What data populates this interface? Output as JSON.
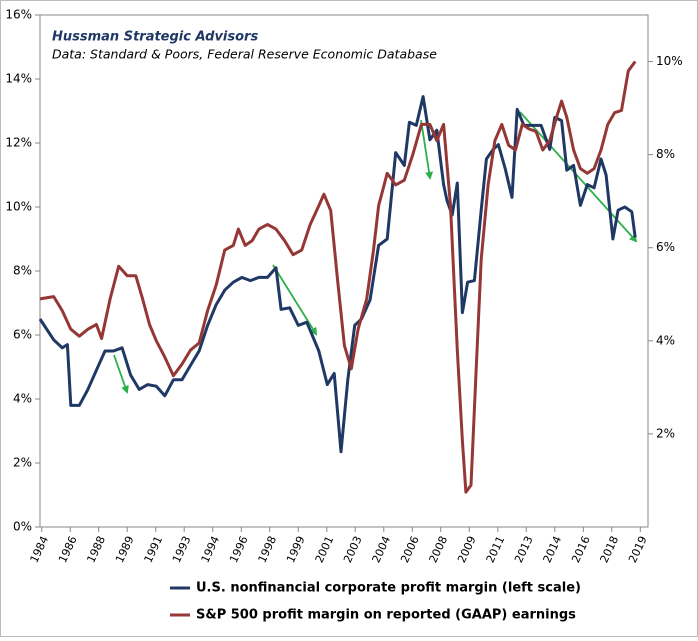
{
  "chart_data": {
    "type": "line",
    "title": "Hussman Strategic Advisors",
    "subtitle": "Data: Standard & Poors, Federal Reserve Economic Database",
    "xlim": [
      1984.2,
      2019.75
    ],
    "xticks": [
      {
        "value": 1984.3,
        "label": "1984"
      },
      {
        "value": 1985.97,
        "label": "1986"
      },
      {
        "value": 1987.63,
        "label": "1988"
      },
      {
        "value": 1989.3,
        "label": "1989"
      },
      {
        "value": 1990.97,
        "label": "1991"
      },
      {
        "value": 1992.63,
        "label": "1993"
      },
      {
        "value": 1994.3,
        "label": "1994"
      },
      {
        "value": 1995.97,
        "label": "1996"
      },
      {
        "value": 1997.63,
        "label": "1998"
      },
      {
        "value": 1999.3,
        "label": "1999"
      },
      {
        "value": 2000.97,
        "label": "2001"
      },
      {
        "value": 2002.63,
        "label": "2003"
      },
      {
        "value": 2004.3,
        "label": "2004"
      },
      {
        "value": 2005.97,
        "label": "2006"
      },
      {
        "value": 2007.63,
        "label": "2008"
      },
      {
        "value": 2009.3,
        "label": "2009"
      },
      {
        "value": 2010.97,
        "label": "2011"
      },
      {
        "value": 2012.63,
        "label": "2013"
      },
      {
        "value": 2014.3,
        "label": "2014"
      },
      {
        "value": 2015.97,
        "label": "2016"
      },
      {
        "value": 2017.63,
        "label": "2018"
      },
      {
        "value": 2019.3,
        "label": "2019"
      }
    ],
    "ylim": [
      0,
      16
    ],
    "yticks": [
      {
        "value": 0,
        "label": "0%"
      },
      {
        "value": 2,
        "label": "2%"
      },
      {
        "value": 4,
        "label": "4%"
      },
      {
        "value": 6,
        "label": "6%"
      },
      {
        "value": 8,
        "label": "8%"
      },
      {
        "value": 10,
        "label": "10%"
      },
      {
        "value": 12,
        "label": "12%"
      },
      {
        "value": 14,
        "label": "14%"
      },
      {
        "value": 16,
        "label": "16%"
      }
    ],
    "y2lim": [
      0,
      11
    ],
    "y2ticks": [
      {
        "value": 2,
        "label": "2%"
      },
      {
        "value": 4,
        "label": "4%"
      },
      {
        "value": 6,
        "label": "6%"
      },
      {
        "value": 8,
        "label": "8%"
      },
      {
        "value": 10,
        "label": "10%"
      }
    ],
    "grid": false,
    "legend": "bottom",
    "series": [
      {
        "name": "U.S. nonfinancial corporate profit margin (left scale)",
        "color": "#1f3864",
        "x": [
          1984.2,
          1985.0,
          1985.5,
          1985.8,
          1986.0,
          1986.5,
          1987.0,
          1987.5,
          1988.0,
          1988.5,
          1989.0,
          1989.5,
          1990.0,
          1990.5,
          1991.0,
          1991.5,
          1992.0,
          1992.5,
          1993.0,
          1993.5,
          1994.0,
          1994.5,
          1995.0,
          1995.5,
          1996.0,
          1996.5,
          1997.0,
          1997.5,
          1998.0,
          1998.3,
          1998.8,
          1999.3,
          1999.8,
          2000.5,
          2001.0,
          2001.4,
          2001.8,
          2002.2,
          2002.6,
          2003.0,
          2003.5,
          2004.0,
          2004.5,
          2005.0,
          2005.5,
          2005.8,
          2006.2,
          2006.6,
          2007.0,
          2007.4,
          2007.8,
          2008.0,
          2008.3,
          2008.6,
          2008.9,
          2009.2,
          2009.6,
          2010.0,
          2010.3,
          2010.7,
          2011.0,
          2011.4,
          2011.8,
          2012.1,
          2012.5,
          2013.0,
          2013.5,
          2014.0,
          2014.3,
          2014.7,
          2015.0,
          2015.4,
          2015.8,
          2016.2,
          2016.6,
          2017.0,
          2017.3,
          2017.7,
          2018.0,
          2018.4,
          2018.8,
          2019.0
        ],
        "values": [
          6.5,
          5.85,
          5.6,
          5.7,
          3.8,
          3.8,
          4.3,
          4.9,
          5.5,
          5.5,
          5.6,
          4.75,
          4.3,
          4.45,
          4.4,
          4.1,
          4.6,
          4.6,
          5.05,
          5.5,
          6.3,
          6.95,
          7.4,
          7.65,
          7.8,
          7.7,
          7.8,
          7.8,
          8.1,
          6.8,
          6.85,
          6.3,
          6.4,
          5.5,
          4.45,
          4.8,
          2.35,
          4.6,
          6.3,
          6.5,
          7.1,
          8.8,
          9.0,
          11.7,
          11.3,
          12.65,
          12.55,
          13.45,
          12.1,
          12.4,
          10.7,
          10.2,
          9.75,
          10.75,
          6.7,
          7.65,
          7.7,
          9.9,
          11.5,
          11.8,
          11.95,
          11.2,
          10.3,
          13.05,
          12.55,
          12.55,
          12.55,
          11.8,
          12.8,
          12.7,
          11.15,
          11.3,
          10.05,
          10.7,
          10.6,
          11.5,
          11.0,
          9.0,
          9.9,
          10.0,
          9.85,
          9.05
        ]
      },
      {
        "name": "S&P 500 profit margin on reported (GAAP) earnings",
        "color": "#953735",
        "axis": "y2",
        "x": [
          1984.2,
          1985.0,
          1985.5,
          1986.0,
          1986.5,
          1987.0,
          1987.5,
          1987.8,
          1988.3,
          1988.8,
          1989.3,
          1989.8,
          1990.2,
          1990.6,
          1991.0,
          1991.5,
          1992.0,
          1992.5,
          1993.0,
          1993.5,
          1994.0,
          1994.5,
          1995.0,
          1995.5,
          1995.8,
          1996.2,
          1996.6,
          1997.0,
          1997.5,
          1998.0,
          1998.5,
          1999.0,
          1999.5,
          2000.0,
          2000.5,
          2000.8,
          2001.2,
          2001.6,
          2002.0,
          2002.4,
          2002.8,
          2003.3,
          2003.7,
          2004.0,
          2004.5,
          2005.0,
          2005.5,
          2006.0,
          2006.5,
          2007.0,
          2007.4,
          2007.8,
          2008.2,
          2008.6,
          2008.9,
          2009.1,
          2009.4,
          2009.7,
          2010.0,
          2010.4,
          2010.8,
          2011.2,
          2011.6,
          2012.0,
          2012.4,
          2012.8,
          2013.2,
          2013.6,
          2014.0,
          2014.4,
          2014.7,
          2015.0,
          2015.4,
          2015.8,
          2016.2,
          2016.6,
          2017.0,
          2017.4,
          2017.8,
          2018.2,
          2018.6,
          2019.0
        ],
        "values": [
          4.9,
          4.95,
          4.65,
          4.25,
          4.1,
          4.25,
          4.35,
          4.05,
          4.9,
          5.6,
          5.4,
          5.4,
          4.9,
          4.35,
          4.0,
          3.65,
          3.25,
          3.5,
          3.8,
          3.95,
          4.65,
          5.2,
          5.95,
          6.05,
          6.4,
          6.05,
          6.15,
          6.4,
          6.5,
          6.4,
          6.15,
          5.85,
          5.95,
          6.5,
          6.9,
          7.15,
          6.8,
          5.3,
          3.9,
          3.4,
          4.25,
          4.9,
          5.95,
          6.9,
          7.6,
          7.35,
          7.45,
          8.0,
          8.65,
          8.65,
          8.3,
          8.65,
          6.9,
          3.8,
          1.85,
          0.75,
          0.9,
          3.35,
          5.75,
          7.35,
          8.3,
          8.65,
          8.2,
          8.1,
          8.65,
          8.55,
          8.5,
          8.1,
          8.3,
          8.8,
          9.15,
          8.8,
          8.1,
          7.7,
          7.6,
          7.7,
          8.1,
          8.65,
          8.9,
          8.95,
          9.8,
          10.0
        ]
      }
    ]
  }
}
